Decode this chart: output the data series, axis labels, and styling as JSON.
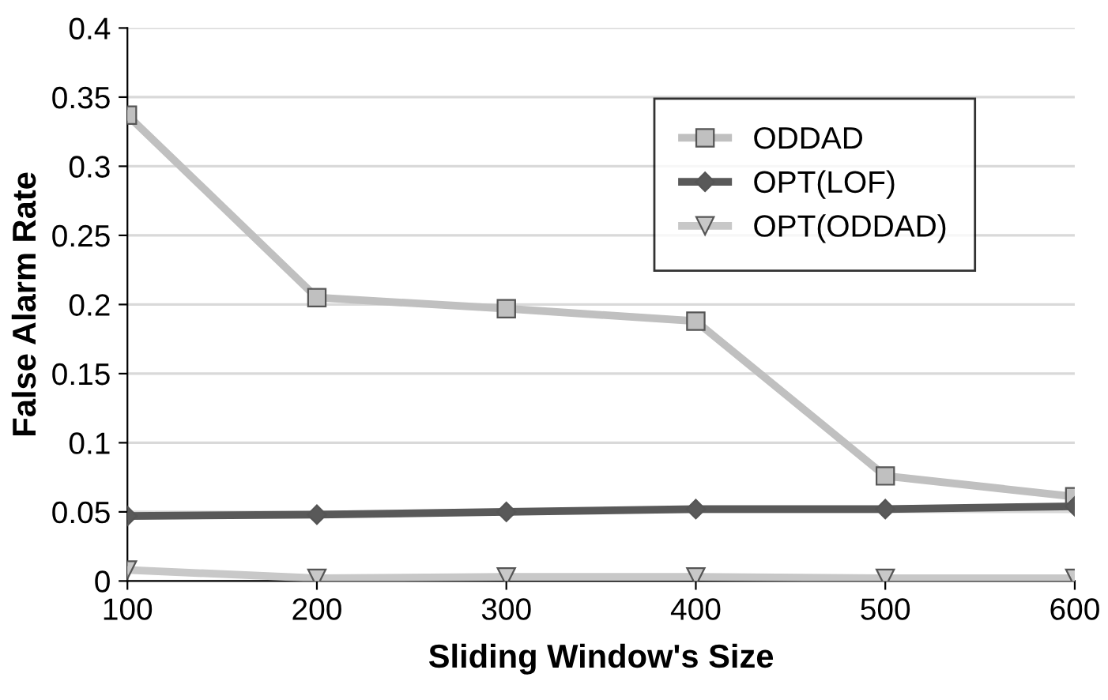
{
  "chart_data": {
    "type": "line",
    "xlabel": "Sliding Window's Size",
    "ylabel": "False Alarm Rate",
    "categories": [
      "100",
      "200",
      "300",
      "400",
      "500",
      "600"
    ],
    "series": [
      {
        "name": "ODDAD",
        "color": "#c0c0c0",
        "marker": "square",
        "values": [
          0.337,
          0.205,
          0.197,
          0.188,
          0.076,
          0.061
        ]
      },
      {
        "name": "OPT(LOF)",
        "color": "#595959",
        "marker": "diamond",
        "values": [
          0.047,
          0.048,
          0.05,
          0.052,
          0.052,
          0.054
        ]
      },
      {
        "name": "OPT(ODDAD)",
        "color": "#c8c8c8",
        "marker": "triangle",
        "values": [
          0.008,
          0.002,
          0.003,
          0.003,
          0.002,
          0.002
        ]
      }
    ],
    "ylim": [
      0,
      0.4
    ],
    "yticks": [
      0,
      0.05,
      0.1,
      0.15,
      0.2,
      0.25,
      0.3,
      0.35,
      0.4
    ],
    "grid": "y",
    "legend": "top right",
    "line_style": "solid"
  }
}
